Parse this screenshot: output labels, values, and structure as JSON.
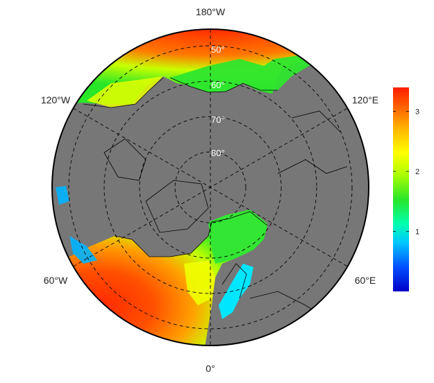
{
  "map": {
    "projection": "north-polar-stereographic",
    "lon_labels": {
      "top": "180°W",
      "upper_left": "120°W",
      "upper_right": "120°E",
      "lower_left": "60°W",
      "lower_right": "60°E",
      "bottom": "0°"
    },
    "lat_labels": [
      "50°",
      "60°",
      "70°",
      "80°"
    ],
    "colorbar": {
      "min": 0,
      "max": 3.4,
      "ticks": [
        "1",
        "2",
        "3"
      ],
      "colors": [
        "#0000c8",
        "#0078ff",
        "#00e6ff",
        "#00ff80",
        "#28e628",
        "#b4ff00",
        "#ffff00",
        "#ffb400",
        "#ff6400",
        "#ff2800"
      ]
    },
    "colors": {
      "land": "#777777",
      "background": "#ffffff",
      "border": "#000000"
    }
  }
}
